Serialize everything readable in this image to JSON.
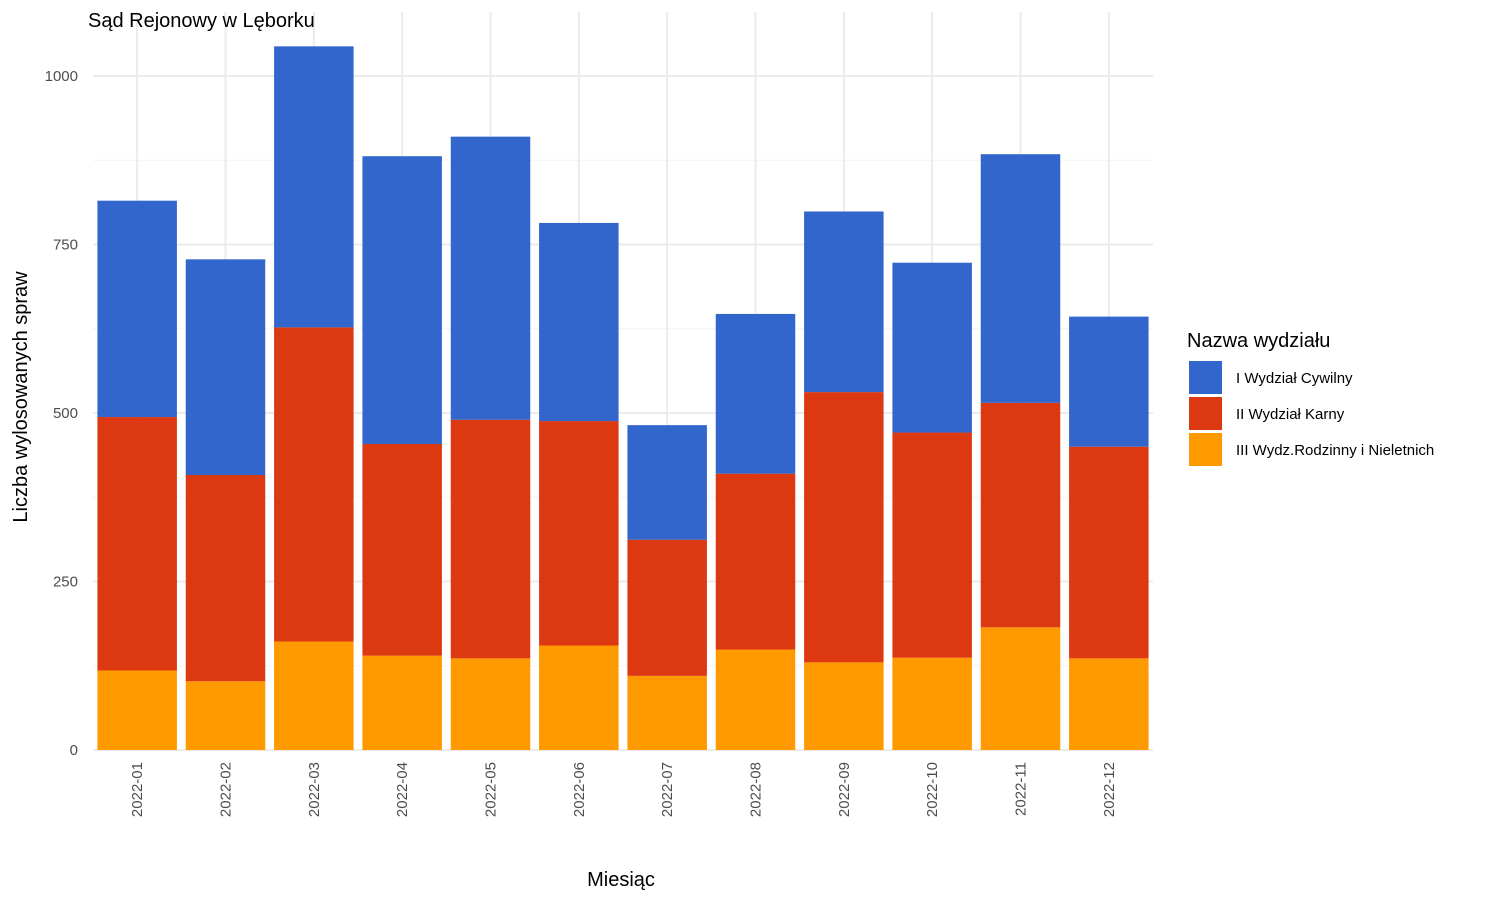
{
  "chart_data": {
    "type": "bar",
    "stacked": true,
    "title": "Sąd Rejonowy w Lęborku",
    "xlabel": "Miesiąc",
    "ylabel": "Liczba wylosowanych spraw",
    "ylim": [
      0,
      1050
    ],
    "yticks": [
      0,
      250,
      500,
      750,
      1000
    ],
    "grid": true,
    "legend": {
      "title": "Nazwa wydziału",
      "position": "right"
    },
    "categories": [
      "2022-01",
      "2022-02",
      "2022-03",
      "2022-04",
      "2022-05",
      "2022-06",
      "2022-07",
      "2022-08",
      "2022-09",
      "2022-10",
      "2022-11",
      "2022-12"
    ],
    "series": [
      {
        "name": "III Wydz.Rodzinny i Nieletnich",
        "color": "#FF9900",
        "values": [
          118,
          102,
          161,
          140,
          136,
          155,
          110,
          149,
          130,
          137,
          182,
          136
        ]
      },
      {
        "name": "II Wydział Karny",
        "color": "#DC3912",
        "values": [
          376,
          306,
          466,
          314,
          354,
          333,
          202,
          261,
          401,
          334,
          333,
          314
        ]
      },
      {
        "name": "I Wydział Cywilny",
        "color": "#3366CC",
        "values": [
          321,
          320,
          417,
          427,
          420,
          294,
          170,
          237,
          268,
          252,
          369,
          193
        ]
      }
    ]
  }
}
